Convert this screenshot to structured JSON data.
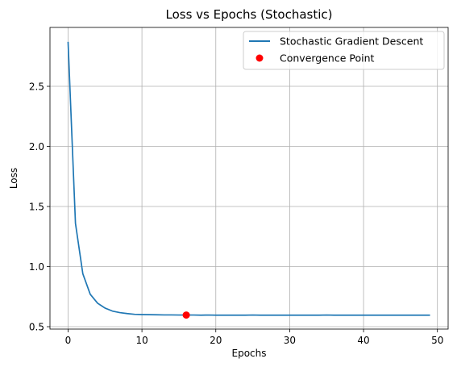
{
  "chart_data": {
    "type": "line",
    "title": "Loss vs Epochs (Stochastic)",
    "xlabel": "Epochs",
    "ylabel": "Loss",
    "xlim": [
      -2.45,
      51.45
    ],
    "ylim": [
      0.48,
      2.99
    ],
    "xticks": [
      0,
      10,
      20,
      30,
      40,
      50
    ],
    "yticks": [
      0.5,
      1.0,
      1.5,
      2.0,
      2.5
    ],
    "xtick_labels": [
      "0",
      "10",
      "20",
      "30",
      "40",
      "50"
    ],
    "ytick_labels": [
      "0.5",
      "1.0",
      "1.5",
      "2.0",
      "2.5"
    ],
    "grid": true,
    "legend_position": "top-right",
    "series": [
      {
        "name": "Stochastic Gradient Descent",
        "color": "#1f77b4",
        "x": [
          0,
          1,
          2,
          3,
          4,
          5,
          6,
          7,
          8,
          9,
          10,
          11,
          12,
          13,
          14,
          15,
          16,
          17,
          18,
          19,
          20,
          21,
          22,
          23,
          24,
          25,
          26,
          27,
          28,
          29,
          30,
          31,
          32,
          33,
          34,
          35,
          36,
          37,
          38,
          39,
          40,
          41,
          42,
          43,
          44,
          45,
          46,
          47,
          48,
          49
        ],
        "y": [
          2.87,
          1.36,
          0.94,
          0.77,
          0.695,
          0.655,
          0.63,
          0.617,
          0.609,
          0.603,
          0.601,
          0.6,
          0.599,
          0.598,
          0.598,
          0.597,
          0.597,
          0.597,
          0.596,
          0.597,
          0.596,
          0.596,
          0.596,
          0.596,
          0.596,
          0.597,
          0.596,
          0.596,
          0.596,
          0.596,
          0.596,
          0.596,
          0.596,
          0.596,
          0.596,
          0.597,
          0.596,
          0.596,
          0.596,
          0.596,
          0.596,
          0.596,
          0.596,
          0.596,
          0.596,
          0.596,
          0.596,
          0.596,
          0.596,
          0.596
        ]
      },
      {
        "name": "Convergence Point",
        "type": "scatter",
        "color": "#ff0000",
        "x": [
          16
        ],
        "y": [
          0.597
        ]
      }
    ]
  }
}
